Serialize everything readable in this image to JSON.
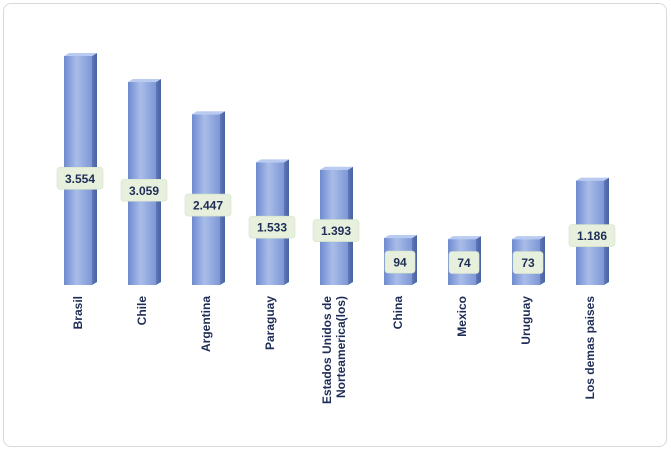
{
  "chart_data": {
    "type": "bar",
    "title": "",
    "xlabel": "",
    "ylabel": "",
    "categories": [
      "Brasil",
      "Chile",
      "Argentina",
      "Paraguay",
      "Estados Unidos de Norteamerica(los)",
      "China",
      "Mexico",
      "Uruguay",
      "Los demas paises"
    ],
    "category_lines": [
      [
        "Brasil"
      ],
      [
        "Chile"
      ],
      [
        "Argentina"
      ],
      [
        "Paraguay"
      ],
      [
        "Estados Unidos de",
        "Norteamerica(los)"
      ],
      [
        "China"
      ],
      [
        "Mexico"
      ],
      [
        "Uruguay"
      ],
      [
        "Los demas paises"
      ]
    ],
    "values": [
      3554,
      3059,
      2447,
      1533,
      1393,
      94,
      74,
      73,
      1186
    ],
    "value_labels": [
      "3.554",
      "3.059",
      "2.447",
      "1.533",
      "1.393",
      "94",
      "74",
      "73",
      "1.186"
    ],
    "bar_color": "#8ea6dd",
    "label_bg": "#e6f0dc"
  }
}
